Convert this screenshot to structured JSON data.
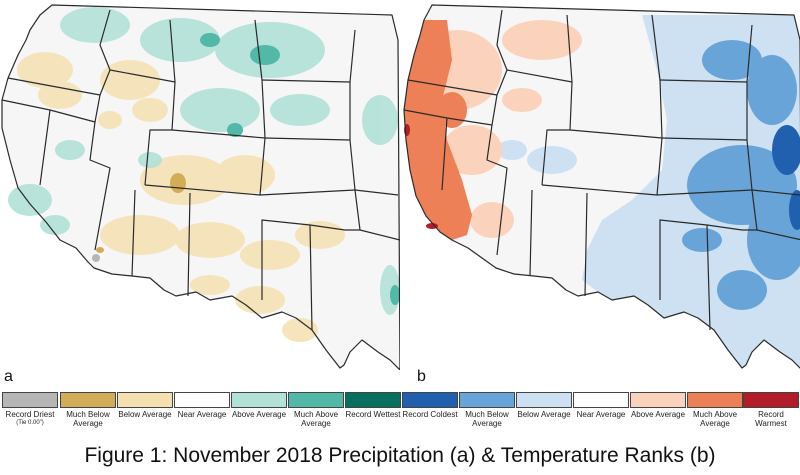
{
  "panels": [
    {
      "letter": "a",
      "title": "Precipitation"
    },
    {
      "letter": "b",
      "title": "Temperature Ranks"
    }
  ],
  "legend": [
    {
      "label": "Record Driest",
      "sub": "(Tie 0.00\")",
      "color": "#b6b6b6"
    },
    {
      "label": "Much Below Average",
      "color": "#d3ac58"
    },
    {
      "label": "Below Average",
      "color": "#f5e0b2"
    },
    {
      "label": "Near Average",
      "color": "#ffffff"
    },
    {
      "label": "Above Average",
      "color": "#b2e1d8"
    },
    {
      "label": "Much Above Average",
      "color": "#52b8a8"
    },
    {
      "label": "Record Wettest",
      "color": "#08705e"
    },
    {
      "label": "Record Coldest",
      "color": "#2160ae"
    },
    {
      "label": "Much Below Average",
      "color": "#68a4d7"
    },
    {
      "label": "Below Average",
      "color": "#cde1f2"
    },
    {
      "label": "Near Average",
      "color": "#ffffff"
    },
    {
      "label": "Above Average",
      "color": "#fbd2bc"
    },
    {
      "label": "Much Above Average",
      "color": "#ee8058"
    },
    {
      "label": "Record Warmest",
      "color": "#b31d2a"
    }
  ],
  "caption": "Figure 1: November 2018 Precipitation (a) & Temperature Ranks (b)",
  "colors": {
    "background": "#ffffff",
    "map_base": "#f6f6f6",
    "state_border": "#2a2a2a"
  }
}
